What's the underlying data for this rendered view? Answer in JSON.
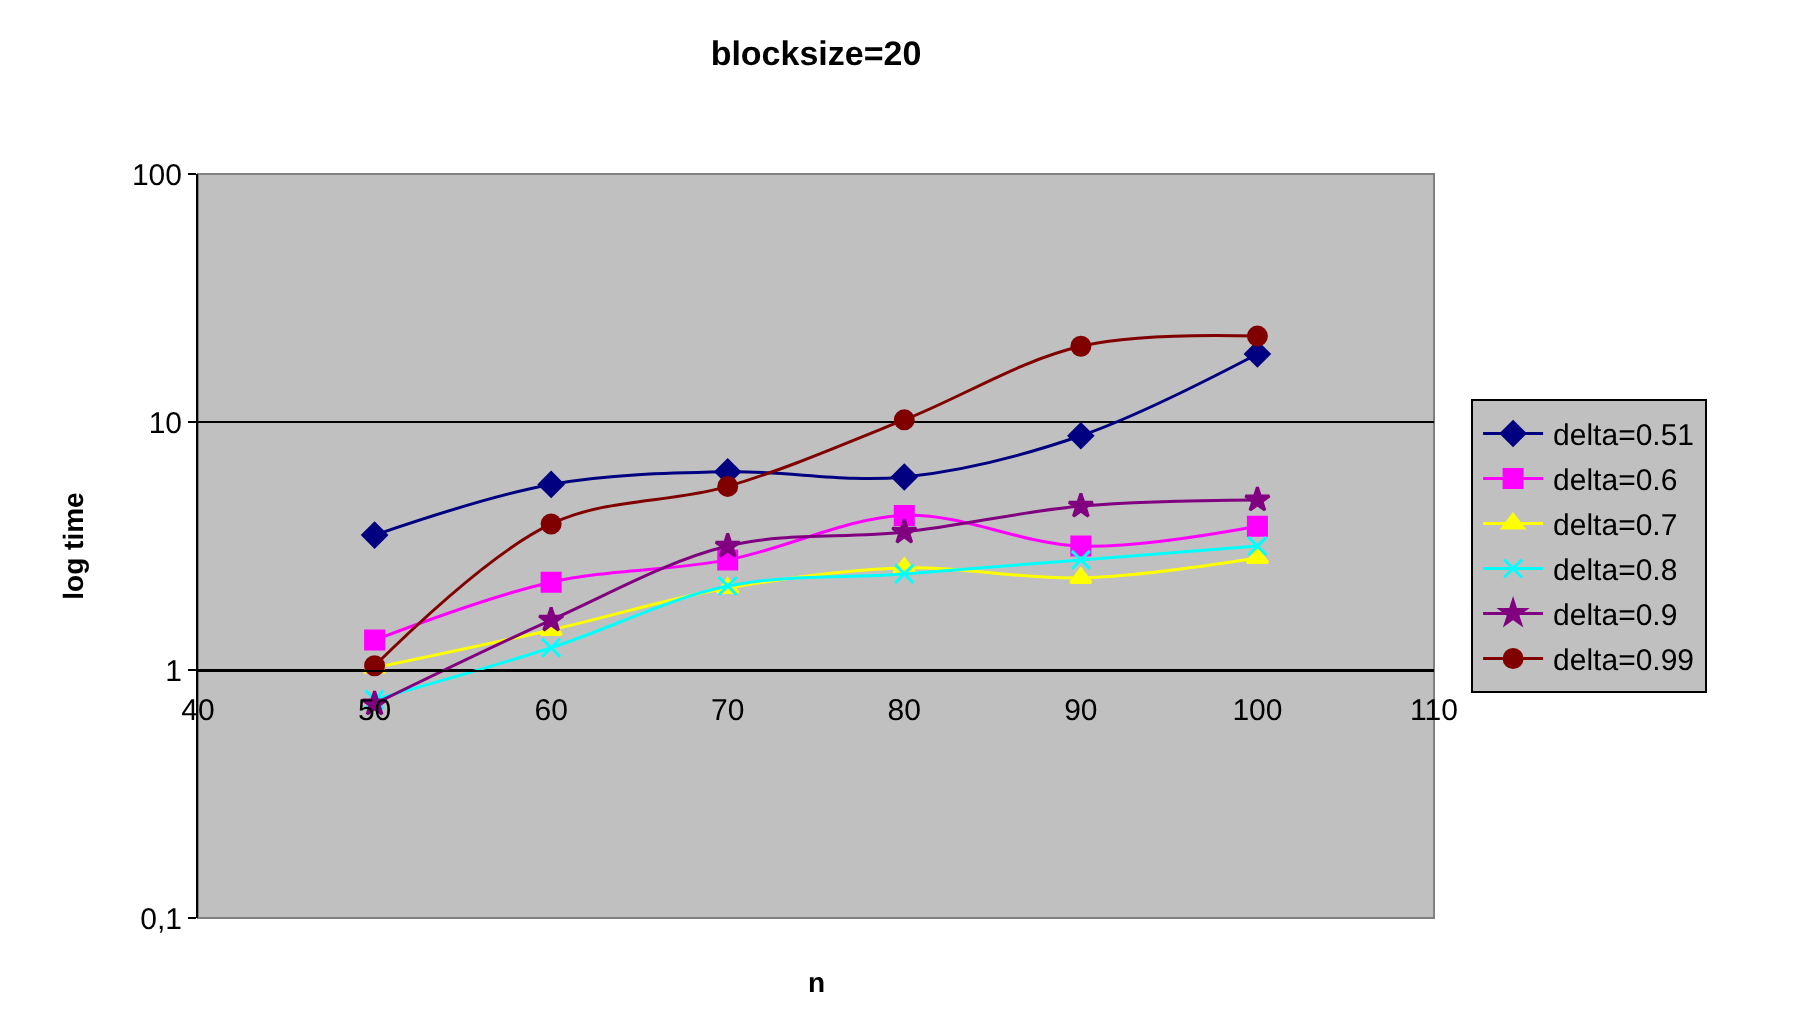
{
  "chart_data": {
    "type": "line",
    "title": "blocksize=20",
    "xlabel": "n",
    "ylabel": "log time",
    "log": "y",
    "grid": "y",
    "legend": "right",
    "line_style": "solid",
    "x": [
      50,
      60,
      70,
      80,
      90,
      100
    ],
    "xlim": [
      40,
      110
    ],
    "xticks": [
      40,
      50,
      60,
      70,
      80,
      90,
      100,
      110
    ],
    "ylim": [
      0.1,
      100
    ],
    "yticks": [
      {
        "value": 0.1,
        "label": "0,1"
      },
      1,
      10,
      100
    ],
    "series": [
      {
        "name": "delta=0.51",
        "color": "#000080",
        "marker": "diamond",
        "values": [
          3.5,
          5.6,
          6.3,
          6.0,
          8.8,
          18.8
        ]
      },
      {
        "name": "delta=0.6",
        "color": "#ff00ff",
        "marker": "square",
        "values": [
          1.32,
          2.26,
          2.78,
          4.2,
          3.16,
          3.8
        ]
      },
      {
        "name": "delta=0.7",
        "color": "#ffff00",
        "marker": "triangle",
        "values": [
          1.02,
          1.45,
          2.14,
          2.58,
          2.35,
          2.83
        ]
      },
      {
        "name": "delta=0.8",
        "color": "#00ffff",
        "marker": "cross",
        "values": [
          0.76,
          1.23,
          2.18,
          2.44,
          2.78,
          3.16
        ]
      },
      {
        "name": "delta=0.9",
        "color": "#800080",
        "marker": "star",
        "values": [
          0.73,
          1.59,
          3.16,
          3.6,
          4.58,
          4.85
        ]
      },
      {
        "name": "delta=0.99",
        "color": "#800000",
        "marker": "circle",
        "values": [
          1.04,
          3.88,
          5.5,
          10.2,
          20.2,
          22.2
        ]
      }
    ]
  }
}
